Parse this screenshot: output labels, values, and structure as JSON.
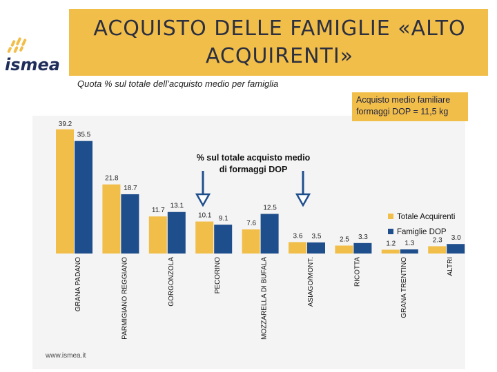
{
  "header": {
    "title": "ACQUISTO DELLE FAMIGLIE «ALTO ACQUIRENTI»",
    "logo_text": "ismea"
  },
  "subtitle": "Quota % sul totale dell’acquisto medio per famiglia",
  "info_box": {
    "line1": "Acquisto medio familiare",
    "line2": "formaggi DOP = 11,5 kg"
  },
  "footer": {
    "url": "www.ismea.it"
  },
  "colors": {
    "header_bg": "#f2be4a",
    "series_totale": "#f2be4a",
    "series_famiglie": "#1f4e8c",
    "arrow": "#1f4e8c"
  },
  "chart_data": {
    "type": "bar",
    "categories": [
      "GRANA PADANO",
      "PARMIGIANO REGGIANO",
      "GORGONZOLA",
      "PECORINO",
      "MOZZARELLA DI BUFALA",
      "ASIAGO/MONT.",
      "RICOTTA",
      "GRANA TRENTINO",
      "ALTRI"
    ],
    "series": [
      {
        "name": "Totale Acquirenti",
        "values": [
          39.2,
          21.8,
          11.7,
          10.1,
          7.6,
          3.6,
          2.5,
          1.2,
          2.3
        ]
      },
      {
        "name": "Famiglie DOP",
        "values": [
          35.5,
          18.7,
          13.1,
          9.1,
          12.5,
          3.5,
          3.3,
          1.3,
          3.0
        ]
      }
    ],
    "annotation": "% sul totale acquisto medio di formaggi DOP",
    "legend_position": "right",
    "ylim": [
      0,
      40
    ],
    "grid": false
  }
}
